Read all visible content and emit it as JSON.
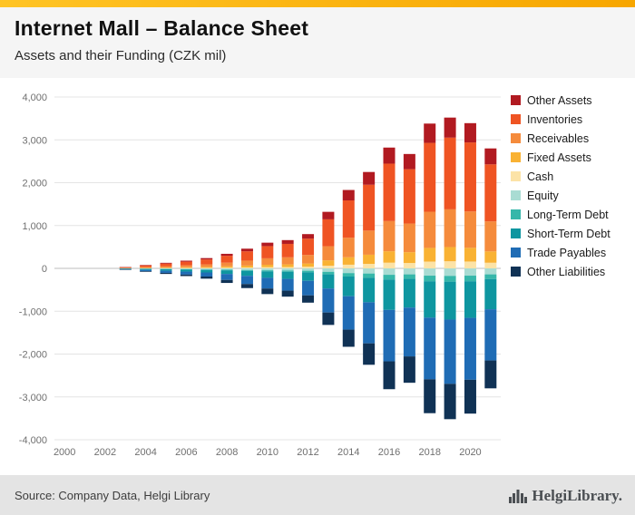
{
  "header": {
    "title": "Internet Mall – Balance Sheet",
    "subtitle": "Assets and their Funding (CZK mil)"
  },
  "footer": {
    "source": "Source: Company Data, Helgi Library",
    "logo_text": "HelgiLibrary."
  },
  "brand": {
    "accent_bar_color": "#F7A600",
    "footer_bg": "#E4E4E4"
  },
  "chart_data": {
    "type": "bar",
    "stacked": true,
    "title": "Internet Mall – Balance Sheet",
    "subtitle": "Assets and their Funding (CZK mil)",
    "unit": "CZK mil",
    "legend_position": "right",
    "grid": true,
    "years": [
      2003,
      2004,
      2005,
      2006,
      2007,
      2008,
      2009,
      2010,
      2011,
      2012,
      2013,
      2014,
      2015,
      2016,
      2017,
      2018,
      2019,
      2020,
      2021
    ],
    "x_axis": {
      "ticks": [
        2000,
        2002,
        2004,
        2006,
        2008,
        2010,
        2012,
        2014,
        2016,
        2018,
        2020
      ],
      "range": [
        1999.5,
        2021.5
      ]
    },
    "y_axis": {
      "min": -4000,
      "max": 4000,
      "step": 1000
    },
    "series": [
      {
        "name": "Other Assets",
        "color": "#B11A21",
        "side": "assets",
        "stack": 5,
        "values": [
          3,
          10,
          18,
          24,
          32,
          46,
          62,
          80,
          88,
          106,
          175,
          243,
          298,
          375,
          355,
          450,
          468,
          450,
          372
        ]
      },
      {
        "name": "Inventories",
        "color": "#EF5423",
        "side": "assets",
        "stack": 4,
        "values": [
          12,
          37,
          60,
          84,
          114,
          160,
          217,
          285,
          314,
          380,
          628,
          870,
          1070,
          1341,
          1269,
          1607,
          1674,
          1612,
          1332
        ]
      },
      {
        "name": "Receivables",
        "color": "#F58B3C",
        "side": "assets",
        "stack": 3,
        "values": [
          8,
          20,
          33,
          45,
          60,
          85,
          115,
          150,
          165,
          200,
          330,
          458,
          563,
          705,
          668,
          845,
          880,
          848,
          700
        ]
      },
      {
        "name": "Fixed Assets",
        "color": "#F9B233",
        "side": "assets",
        "stack": 2,
        "values": [
          4,
          8,
          12,
          17,
          22,
          32,
          44,
          57,
          62,
          76,
          125,
          173,
          213,
          266,
          252,
          319,
          332,
          320,
          264
        ]
      },
      {
        "name": "Cash",
        "color": "#FCE3A7",
        "side": "assets",
        "stack": 1,
        "values": [
          3,
          5,
          7,
          10,
          12,
          17,
          22,
          28,
          31,
          38,
          62,
          86,
          106,
          133,
          126,
          159,
          166,
          160,
          132
        ]
      },
      {
        "name": "Equity",
        "color": "#A9DCD3",
        "side": "funding",
        "stack": 1,
        "values": [
          5,
          10,
          15,
          20,
          25,
          30,
          40,
          45,
          50,
          55,
          80,
          110,
          120,
          150,
          140,
          170,
          175,
          170,
          140
        ]
      },
      {
        "name": "Long-Term Debt",
        "color": "#36B7AA",
        "side": "funding",
        "stack": 2,
        "values": [
          2,
          5,
          5,
          10,
          10,
          15,
          20,
          25,
          30,
          35,
          60,
          80,
          100,
          110,
          105,
          130,
          135,
          130,
          110
        ]
      },
      {
        "name": "Short-Term Debt",
        "color": "#0E96A0",
        "side": "funding",
        "stack": 3,
        "values": [
          8,
          20,
          35,
          45,
          60,
          85,
          115,
          150,
          165,
          200,
          330,
          460,
          570,
          710,
          670,
          850,
          885,
          855,
          705
        ]
      },
      {
        "name": "Trade Payables",
        "color": "#1F6CB5",
        "side": "funding",
        "stack": 4,
        "values": [
          10,
          30,
          50,
          70,
          95,
          140,
          190,
          250,
          275,
          340,
          560,
          780,
          960,
          1200,
          1140,
          1440,
          1500,
          1445,
          1195
        ]
      },
      {
        "name": "Other Liabilities",
        "color": "#103255",
        "side": "funding",
        "stack": 5,
        "values": [
          5,
          15,
          25,
          35,
          50,
          70,
          95,
          130,
          140,
          170,
          290,
          400,
          500,
          650,
          615,
          790,
          825,
          790,
          650
        ]
      }
    ]
  }
}
